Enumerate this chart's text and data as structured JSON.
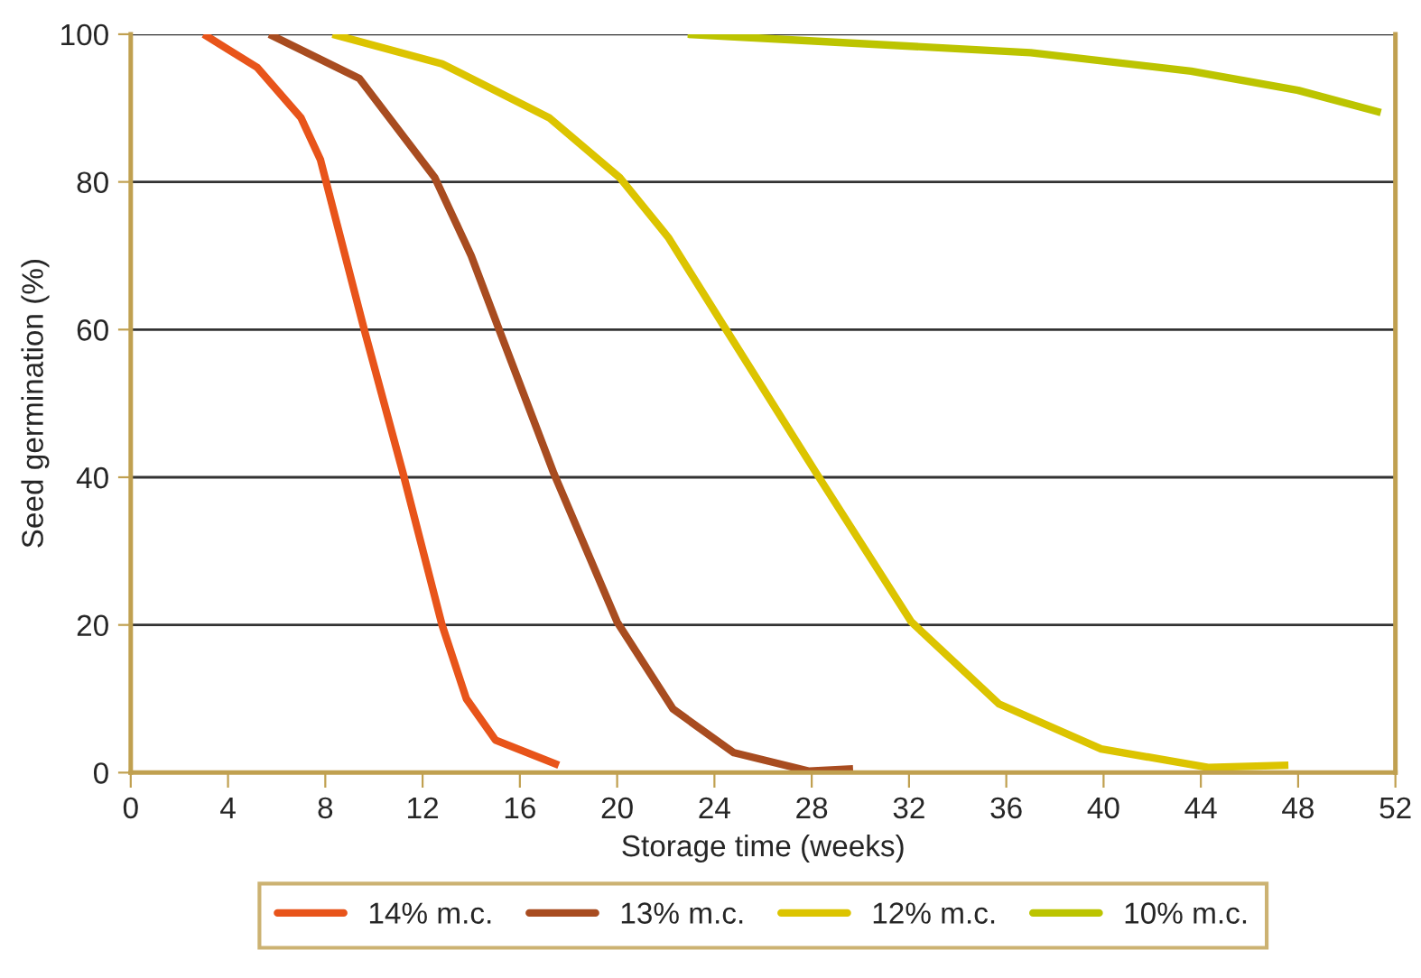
{
  "chart_data": {
    "type": "line",
    "xlabel": "Storage time (weeks)",
    "ylabel": "Seed germination (%)",
    "xlim": [
      0,
      52
    ],
    "xticks": [
      0,
      4,
      8,
      12,
      16,
      20,
      24,
      28,
      32,
      36,
      40,
      44,
      48,
      52
    ],
    "ylim": [
      0,
      100
    ],
    "yticks": [
      0,
      20,
      40,
      60,
      80,
      100
    ],
    "grid": "y",
    "legend": "bottom",
    "marker": "none",
    "line_style": "solid",
    "series": [
      {
        "name": "14% m.c.",
        "color": "#e8541a",
        "x": [
          3.0,
          5.2,
          7.0,
          7.8,
          9.6,
          11.2,
          12.8,
          13.8,
          15.0,
          17.6
        ],
        "values": [
          100,
          95.5,
          88.7,
          83,
          60,
          40.5,
          20,
          10,
          4.4,
          1
        ]
      },
      {
        "name": "13% m.c.",
        "color": "#a84c20",
        "x": [
          5.7,
          9.4,
          12.5,
          14.0,
          15.1,
          17.4,
          20.0,
          22.3,
          24.8,
          27.9,
          29.7
        ],
        "values": [
          100,
          94,
          80.6,
          70,
          60.4,
          40.5,
          20.4,
          8.6,
          2.7,
          0.2,
          0.5
        ]
      },
      {
        "name": "12% m.c.",
        "color": "#dcc400",
        "x": [
          8.3,
          12.8,
          17.2,
          20.1,
          22.1,
          24.4,
          28.2,
          32.1,
          35.7,
          39.9,
          44.3,
          47.6
        ],
        "values": [
          100,
          96,
          88.7,
          80.6,
          72.5,
          60.4,
          40.5,
          20.4,
          9.3,
          3.2,
          0.7,
          1
        ]
      },
      {
        "name": "10% m.c.",
        "color": "#bcc400",
        "x": [
          22.9,
          37.0,
          43.6,
          48.0,
          51.4
        ],
        "values": [
          100,
          97.5,
          95,
          92.4,
          89.4
        ]
      }
    ]
  }
}
